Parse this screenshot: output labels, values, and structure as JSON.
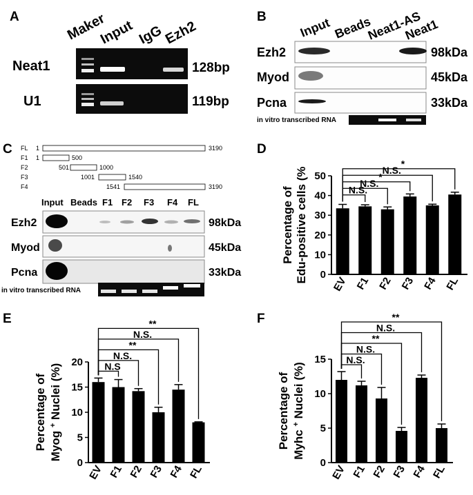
{
  "panels": {
    "A": {
      "letter": "A",
      "lanes": [
        "Maker",
        "Input",
        "IgG",
        "Ezh2"
      ],
      "rows": [
        {
          "label": "Neat1",
          "size": "128bp"
        },
        {
          "label": "U1",
          "size": "119bp"
        }
      ]
    },
    "B": {
      "letter": "B",
      "lanes": [
        "Input",
        "Beads",
        "Neat1-AS",
        "Neat1"
      ],
      "rows": [
        {
          "label": "Ezh2",
          "size": "98kDa"
        },
        {
          "label": "Myod",
          "size": "45kDa"
        },
        {
          "label": "Pcna",
          "size": "33kDa"
        }
      ],
      "rna_label": "in vitro transcribed RNA"
    },
    "C": {
      "letter": "C",
      "fragments": [
        {
          "name": "FL",
          "start": "1",
          "end": "3190"
        },
        {
          "name": "F1",
          "start": "1",
          "end": "500"
        },
        {
          "name": "F2",
          "start": "501",
          "end": "1000"
        },
        {
          "name": "F3",
          "start": "1001",
          "end": "1540"
        },
        {
          "name": "F4",
          "start": "1541",
          "end": "3190"
        }
      ],
      "lanes": [
        "Input",
        "Beads",
        "F1",
        "F2",
        "F3",
        "F4",
        "FL"
      ],
      "rows": [
        {
          "label": "Ezh2",
          "size": "98kDa"
        },
        {
          "label": "Myod",
          "size": "45kDa"
        },
        {
          "label": "Pcna",
          "size": "33kDa"
        }
      ],
      "rna_label": "in vitro transcribed RNA"
    }
  },
  "chart_data": [
    {
      "panel": "D",
      "type": "bar",
      "ylabel": "Percentage of Edu-positive cells (%",
      "ylim": [
        0,
        50
      ],
      "yticks": [
        0,
        10,
        20,
        30,
        40,
        50
      ],
      "categories": [
        "EV",
        "F1",
        "F2",
        "F3",
        "F4",
        "FL"
      ],
      "values": [
        33.5,
        34.5,
        33,
        39.5,
        35,
        40.5
      ],
      "errors": [
        2,
        0.8,
        1.2,
        1.3,
        0.6,
        1.2
      ],
      "significance": [
        {
          "to": "F2",
          "label": "N.S."
        },
        {
          "to": "F1",
          "label": "N.S."
        },
        {
          "to": "F3",
          "label": "*"
        },
        {
          "to": "F4",
          "label": "N.S."
        },
        {
          "to": "FL",
          "label": "*"
        }
      ]
    },
    {
      "panel": "E",
      "type": "bar",
      "ylabel_line1": "Percentage of",
      "ylabel_gene": "Myog",
      "ylabel_sup": "+",
      "ylabel_rest": "Nuclei (%)",
      "ylim": [
        0,
        20
      ],
      "yticks": [
        0,
        5,
        10,
        15,
        20
      ],
      "categories": [
        "EV",
        "F1",
        "F2",
        "F3",
        "F4",
        "FL"
      ],
      "values": [
        16,
        15,
        14.2,
        10,
        14.5,
        8
      ],
      "errors": [
        0.8,
        1.5,
        0.5,
        1,
        1,
        0.1
      ],
      "significance": [
        {
          "to": "F1",
          "label": "N.S"
        },
        {
          "to": "F2",
          "label": "N.S."
        },
        {
          "to": "F3",
          "label": "**"
        },
        {
          "to": "F4",
          "label": "N.S."
        },
        {
          "to": "FL",
          "label": "**"
        }
      ]
    },
    {
      "panel": "F",
      "type": "bar",
      "ylabel_line1": "Percentage of",
      "ylabel_gene": "Myhc",
      "ylabel_sup": "+",
      "ylabel_rest": "Nuclei (%)",
      "ylim": [
        0,
        15
      ],
      "yticks": [
        0,
        5,
        10,
        15
      ],
      "categories": [
        "EV",
        "F1",
        "F2",
        "F3",
        "F4",
        "FL"
      ],
      "values": [
        12,
        11.2,
        9.3,
        4.6,
        12.3,
        5
      ],
      "errors": [
        1.2,
        0.6,
        1.6,
        0.5,
        0.4,
        0.6
      ],
      "significance": [
        {
          "to": "F1",
          "label": "N.S."
        },
        {
          "to": "F2",
          "label": "N.S."
        },
        {
          "to": "F3",
          "label": "**"
        },
        {
          "to": "F4",
          "label": "N.S."
        },
        {
          "to": "FL",
          "label": "**"
        }
      ]
    }
  ]
}
